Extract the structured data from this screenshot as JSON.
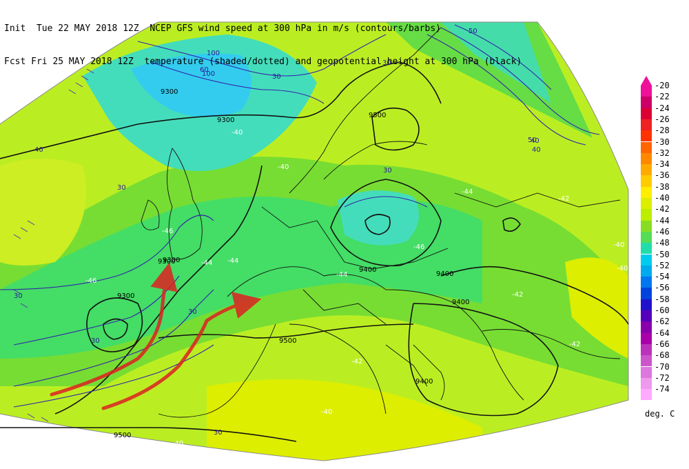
{
  "header": {
    "init_label": "Init",
    "init_time": "Tue 22 MAY 2018 12Z",
    "fcst_label": "Fcst",
    "fcst_time": "Fri 25 MAY 2018 12Z",
    "line1": "NCEP GFS wind speed at 300 hPa in m/s (contours/barbs)",
    "line2": "temperature (shaded/dotted) and geopotential height at 300 hPa (black)"
  },
  "legend": {
    "units": "deg. C",
    "levels": [
      "-20",
      "-22",
      "-24",
      "-26",
      "-28",
      "-30",
      "-32",
      "-34",
      "-36",
      "-38",
      "-40",
      "-42",
      "-44",
      "-46",
      "-48",
      "-50",
      "-52",
      "-54",
      "-56",
      "-58",
      "-60",
      "-62",
      "-64",
      "-66",
      "-68",
      "-70",
      "-72",
      "-74"
    ],
    "colors": [
      "#ee1199",
      "#cc0066",
      "#dd0033",
      "#ee2222",
      "#ff3300",
      "#ff6600",
      "#ff8800",
      "#ffaa00",
      "#ffcc00",
      "#ffee00",
      "#ddee00",
      "#bbee00",
      "#88dd22",
      "#55dd55",
      "#22ddaa",
      "#00ccee",
      "#00aaee",
      "#0077ee",
      "#0044dd",
      "#2211cc",
      "#5500bb",
      "#8800aa",
      "#aa00aa",
      "#bb33bb",
      "#cc55cc",
      "#dd77dd",
      "#ee99ee",
      "#ffaaff"
    ]
  },
  "map_labels": {
    "height_contours": [
      "9300",
      "9300",
      "9300",
      "9300",
      "9300",
      "9400",
      "9400",
      "9400",
      "9500",
      "9500",
      "9500",
      "9400"
    ],
    "wind_contours": [
      "30",
      "30",
      "30",
      "30",
      "30",
      "30",
      "30",
      "30",
      "40",
      "40",
      "40",
      "50",
      "50",
      "60",
      "100",
      "100"
    ],
    "temperature_labels": [
      "-40",
      "-40",
      "-40",
      "-42",
      "-42",
      "-42",
      "-42",
      "-44",
      "-44",
      "-44",
      "-44",
      "-46",
      "-46",
      "-46",
      "-40",
      "-40",
      "-40"
    ]
  }
}
